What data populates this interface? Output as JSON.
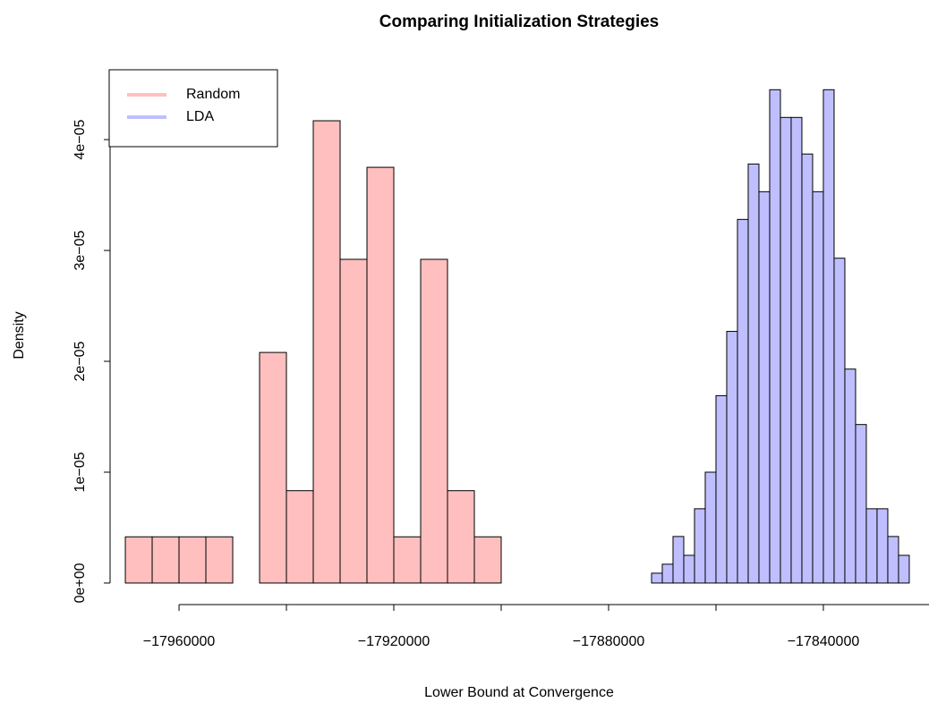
{
  "chart_data": {
    "type": "histogram",
    "title": "Comparing Initialization Strategies",
    "x_label": "Lower Bound at Convergence",
    "y_label": "Density",
    "legend": "topleft",
    "xlim": [
      -17975840,
      -17818160
    ],
    "ylim": [
      -1.78e-06,
      4.63e-05
    ],
    "xticks": [
      {
        "value": -17960000,
        "label": "−17960000"
      },
      {
        "value": -17940000,
        "label": null
      },
      {
        "value": -17920000,
        "label": "−17920000"
      },
      {
        "value": -17900000,
        "label": null
      },
      {
        "value": -17880000,
        "label": "−17880000"
      },
      {
        "value": -17860000,
        "label": null
      },
      {
        "value": -17840000,
        "label": "−17840000"
      }
    ],
    "yticks": [
      {
        "value": 0,
        "label": "0e+00"
      },
      {
        "value": 1e-05,
        "label": "1e−05"
      },
      {
        "value": 2e-05,
        "label": "2e−05"
      },
      {
        "value": 3e-05,
        "label": "3e−05"
      },
      {
        "value": 4e-05,
        "label": "4e−05"
      }
    ],
    "series": [
      {
        "name": "Random",
        "color": "#ffbfbf",
        "bins": [
          -17970000,
          -17965000,
          -17960000,
          -17955000,
          -17950000,
          -17945000,
          -17940000,
          -17935000,
          -17930000,
          -17925000,
          -17920000,
          -17915000,
          -17910000,
          -17905000,
          -17900000
        ],
        "values": [
          4.17e-06,
          4.17e-06,
          4.17e-06,
          4.17e-06,
          0,
          2.08e-05,
          8.33e-06,
          4.17e-05,
          2.92e-05,
          3.75e-05,
          4.17e-06,
          2.92e-05,
          8.33e-06,
          4.17e-06
        ]
      },
      {
        "name": "LDA",
        "color": "#bfbfff",
        "bins": [
          -17872000,
          -17870000,
          -17868000,
          -17866000,
          -17864000,
          -17862000,
          -17860000,
          -17858000,
          -17856000,
          -17854000,
          -17852000,
          -17850000,
          -17848000,
          -17846000,
          -17844000,
          -17842000,
          -17840000,
          -17838000,
          -17836000,
          -17834000,
          -17832000,
          -17830000,
          -17828000,
          -17826000,
          -17824000
        ],
        "values": [
          8.9e-07,
          1.7e-06,
          4.2e-06,
          2.5e-06,
          6.7e-06,
          1e-05,
          1.69e-05,
          2.27e-05,
          3.28e-05,
          3.78e-05,
          3.53e-05,
          4.45e-05,
          4.2e-05,
          4.2e-05,
          3.87e-05,
          3.53e-05,
          4.45e-05,
          2.93e-05,
          1.93e-05,
          1.43e-05,
          6.7e-06,
          6.7e-06,
          4.2e-06,
          2.5e-06
        ]
      }
    ]
  }
}
